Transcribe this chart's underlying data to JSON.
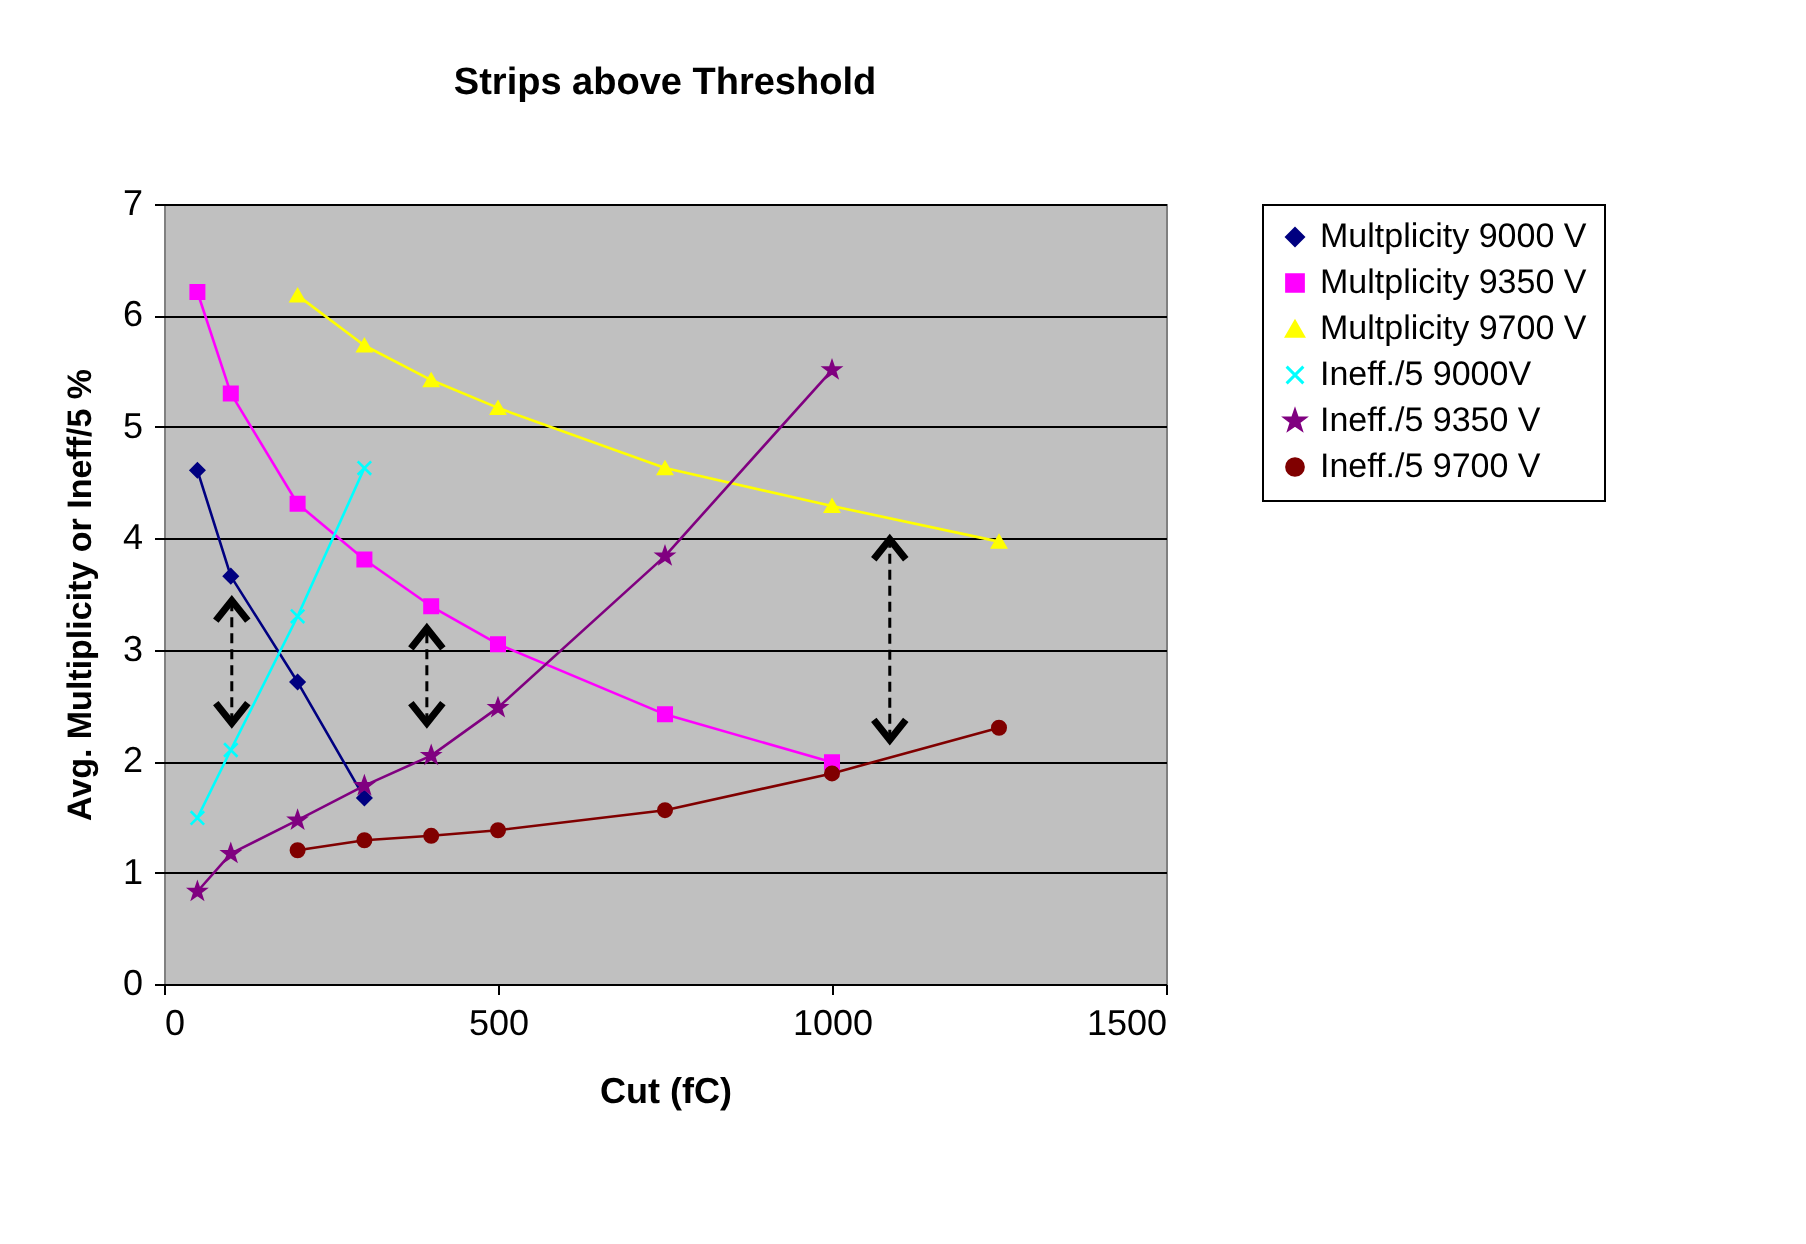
{
  "chart_data": {
    "type": "line",
    "title": "Strips above Threshold",
    "xlabel": "Cut (fC)",
    "ylabel": "Avg. Multiplicity or Ineff/5 %",
    "xlim": [
      0,
      1500
    ],
    "xticks": [
      0,
      500,
      1000,
      1500
    ],
    "ylim": [
      0,
      7
    ],
    "yticks": [
      0,
      1,
      2,
      3,
      4,
      5,
      6,
      7
    ],
    "grid": "y",
    "legend": "right",
    "series": [
      {
        "name": "Multplicity 9000 V",
        "color": "#000080",
        "marker": "diamond",
        "x": [
          50,
          100,
          200,
          300
        ],
        "values": [
          4.61,
          3.66,
          2.71,
          1.67
        ]
      },
      {
        "name": "Multplicity 9350 V",
        "color": "#ff00ff",
        "marker": "square",
        "x": [
          50,
          100,
          200,
          300,
          400,
          500,
          750,
          1000
        ],
        "values": [
          6.21,
          5.3,
          4.31,
          3.81,
          3.39,
          3.05,
          2.42,
          1.99
        ]
      },
      {
        "name": "Multplicity 9700 V",
        "color": "#ffff00",
        "marker": "triangle",
        "x": [
          200,
          300,
          400,
          500,
          750,
          1000,
          1250
        ],
        "values": [
          6.18,
          5.73,
          5.42,
          5.17,
          4.63,
          4.29,
          3.97
        ]
      },
      {
        "name": "Ineff./5 9000V",
        "color": "#00ffff",
        "marker": "cross",
        "x": [
          50,
          100,
          200,
          300
        ],
        "values": [
          1.49,
          2.1,
          3.3,
          4.63
        ]
      },
      {
        "name": "Ineff./5 9350 V",
        "color": "#800080",
        "marker": "star",
        "x": [
          50,
          100,
          200,
          300,
          400,
          500,
          750,
          1000
        ],
        "values": [
          0.83,
          1.17,
          1.47,
          1.78,
          2.05,
          2.48,
          3.84,
          5.51
        ]
      },
      {
        "name": "Ineff./5 9700 V",
        "color": "#800000",
        "marker": "circle",
        "x": [
          200,
          300,
          400,
          500,
          750,
          1000,
          1250
        ],
        "values": [
          1.2,
          1.29,
          1.33,
          1.38,
          1.56,
          1.89,
          2.3
        ]
      }
    ]
  }
}
